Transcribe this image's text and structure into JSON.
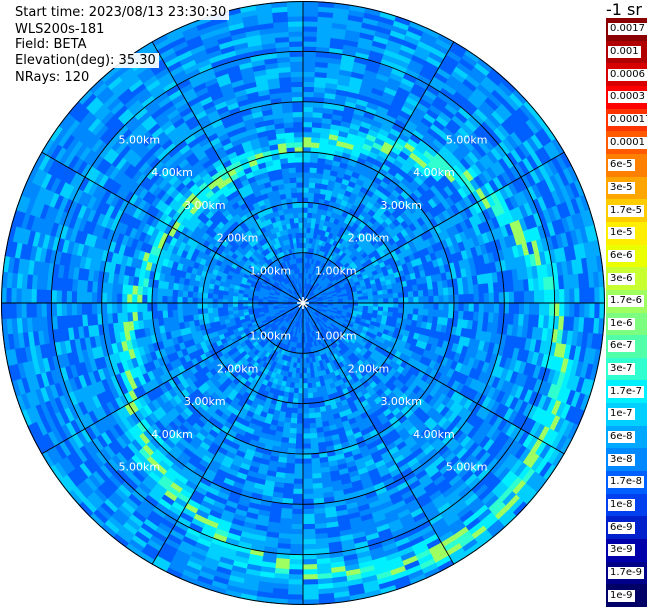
{
  "header": {
    "start_time": "Start time: 2023/08/13 23:30:30",
    "instrument": "WLS200s-181",
    "field": "Field: BETA",
    "elevation": "Elevation(deg): 35.30",
    "nrays": "NRays: 120"
  },
  "colorbar": {
    "units": "-1 sr",
    "levels": [
      {
        "label": "0.0017",
        "color": "#8b0000"
      },
      {
        "label": "0.001",
        "color": "#b00000"
      },
      {
        "label": "0.0006",
        "color": "#d60000"
      },
      {
        "label": "0.0003",
        "color": "#ff0000"
      },
      {
        "label": "0.00017",
        "color": "#ff3300"
      },
      {
        "label": "0.0001",
        "color": "#ff5a00"
      },
      {
        "label": "6e-5",
        "color": "#ff8000"
      },
      {
        "label": "3e-5",
        "color": "#ffa500"
      },
      {
        "label": "1.7e-5",
        "color": "#ffcc00"
      },
      {
        "label": "1e-5",
        "color": "#ffee00"
      },
      {
        "label": "6e-6",
        "color": "#eaff00"
      },
      {
        "label": "3e-6",
        "color": "#c8ff30"
      },
      {
        "label": "1.7e-6",
        "color": "#a0ff60"
      },
      {
        "label": "1e-6",
        "color": "#7cff80"
      },
      {
        "label": "6e-7",
        "color": "#50ffa8"
      },
      {
        "label": "3e-7",
        "color": "#30ffd0"
      },
      {
        "label": "1.7e-7",
        "color": "#00f0ff"
      },
      {
        "label": "1e-7",
        "color": "#00d0ff"
      },
      {
        "label": "6e-8",
        "color": "#00a8ff"
      },
      {
        "label": "3e-8",
        "color": "#0088ff"
      },
      {
        "label": "1.7e-8",
        "color": "#0060ff"
      },
      {
        "label": "1e-8",
        "color": "#0040ee"
      },
      {
        "label": "6e-9",
        "color": "#0020cc"
      },
      {
        "label": "3e-9",
        "color": "#0000aa"
      },
      {
        "label": "1.7e-9",
        "color": "#000088"
      },
      {
        "label": "1e-9",
        "color": "#000066"
      }
    ]
  },
  "chart_data": {
    "type": "heatmap",
    "projection": "polar-ppi",
    "field": "BETA",
    "max_range_km": 6.0,
    "range_ring_values_km": [
      1,
      2,
      3,
      4,
      5
    ],
    "range_ring_labels": [
      "1.00km",
      "2.00km",
      "3.00km",
      "4.00km",
      "5.00km"
    ],
    "spoke_count": 12,
    "n_rays": 120,
    "range_gate_km": 0.1,
    "background_level": "3e-8",
    "enhanced_feature": {
      "description_level": "1.7e-7 to 3e-6",
      "ring_center_range_km": 4.3,
      "ring_center_offset_km": [
        0.8,
        -1.1
      ]
    }
  }
}
